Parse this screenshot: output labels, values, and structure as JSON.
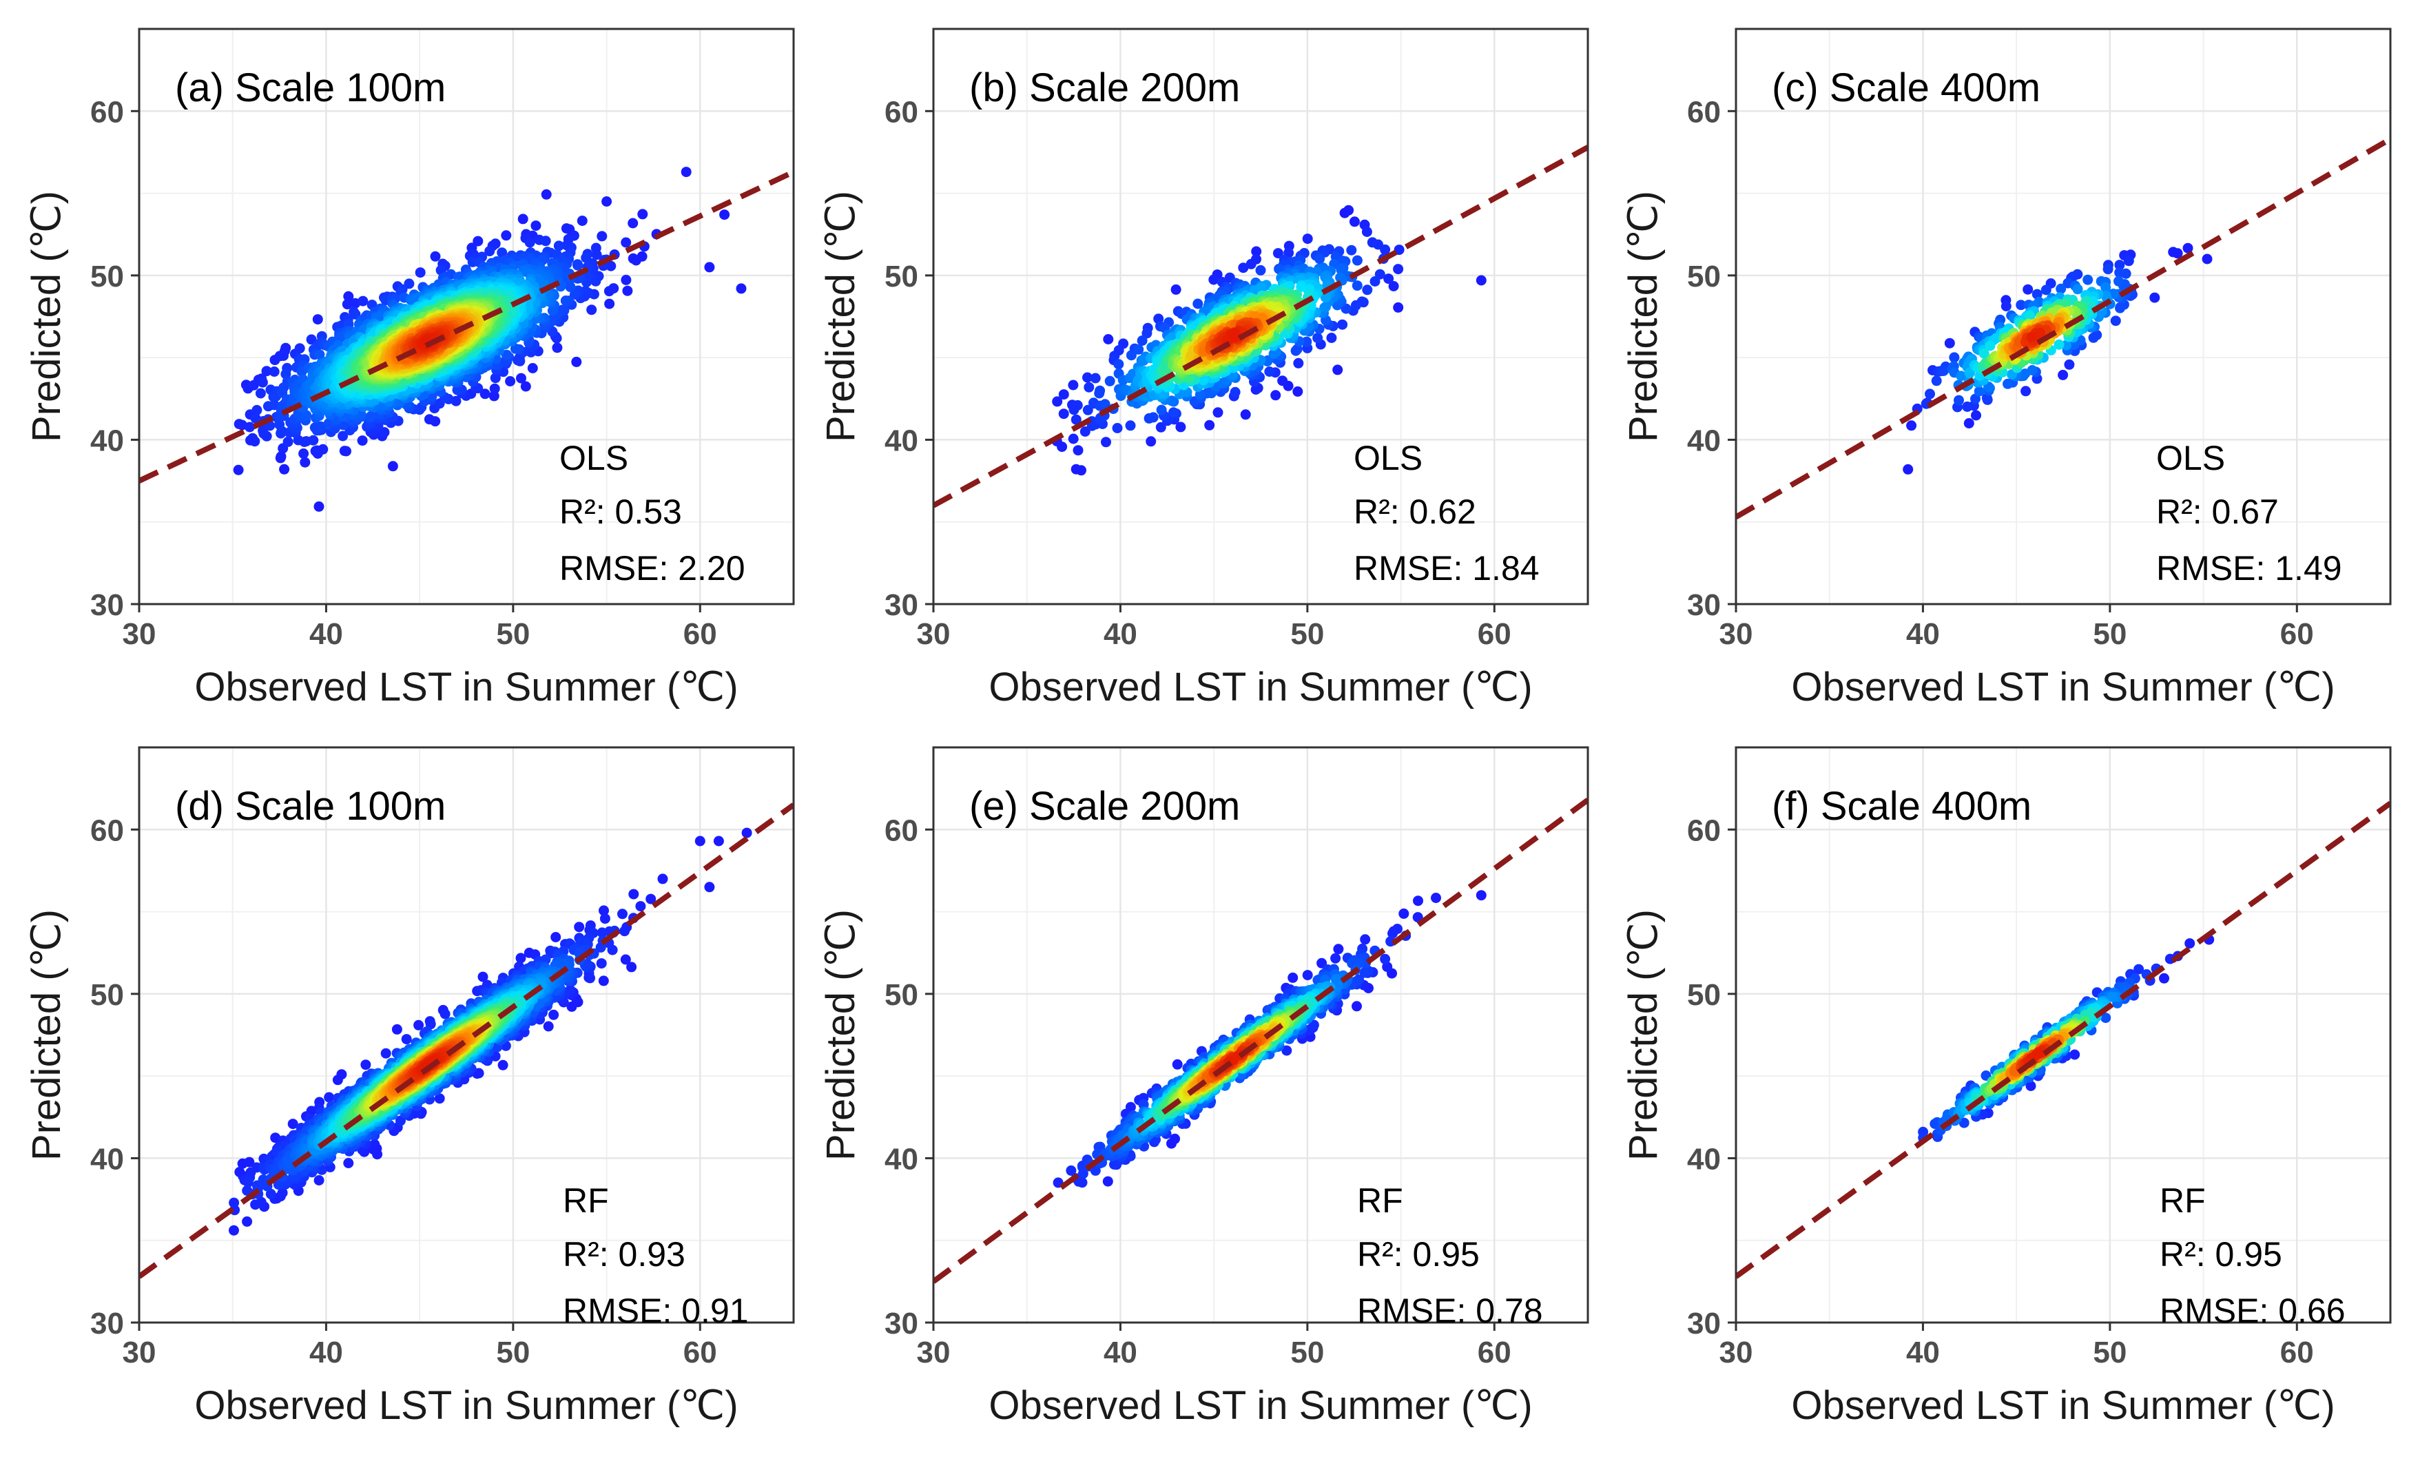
{
  "figure": {
    "description_free": true,
    "x_axis_title": "Observed LST in Summer (℃)",
    "y_axis_title": "Predicted (℃)"
  },
  "colors": {
    "fit_line": "#8b1a1a",
    "grid": "#e6e6e6",
    "frame": "#333333",
    "density_low": "#1a1aff",
    "density_mid": "#00e0ff",
    "density_high": "#e51a00"
  },
  "chart_data": [
    {
      "type": "scatter",
      "panel": "a",
      "title": "(a) Scale 100m",
      "model": "OLS",
      "r2_label": "R²: 0.53",
      "rmse_label": "RMSE: 2.20",
      "xlabel": "Observed LST in Summer (℃)",
      "ylabel": "Predicted (℃)",
      "xlim": [
        30,
        65
      ],
      "ylim": [
        30,
        65
      ],
      "xticks": [
        30,
        40,
        50,
        60
      ],
      "yticks": [
        30,
        40,
        50,
        60
      ],
      "fit_line": {
        "x": [
          30,
          65
        ],
        "y": [
          37.5,
          56.3
        ]
      },
      "cloud": {
        "center": [
          45.5,
          46.0
        ],
        "sx": 3.8,
        "sy": 2.5,
        "rho": 0.72,
        "n": 2600,
        "xmin": 35,
        "xmax": 62
      },
      "outliers": [
        [
          60.5,
          50.5
        ],
        [
          62.2,
          49.2
        ],
        [
          61.3,
          53.7
        ],
        [
          55,
          54.5
        ]
      ]
    },
    {
      "type": "scatter",
      "panel": "b",
      "title": "(b) Scale 200m",
      "model": "OLS",
      "r2_label": "R²: 0.62",
      "rmse_label": "RMSE: 1.84",
      "xlabel": "Observed LST in Summer (℃)",
      "ylabel": "Predicted (℃)",
      "xlim": [
        30,
        65
      ],
      "ylim": [
        30,
        65
      ],
      "xticks": [
        30,
        40,
        50,
        60
      ],
      "yticks": [
        30,
        40,
        50,
        60
      ],
      "fit_line": {
        "x": [
          30,
          65
        ],
        "y": [
          36.0,
          57.8
        ]
      },
      "cloud": {
        "center": [
          46.0,
          46.3
        ],
        "sx": 3.4,
        "sy": 2.4,
        "rho": 0.78,
        "n": 1000,
        "xmin": 36.5,
        "xmax": 56
      },
      "outliers": [
        [
          59.3,
          49.7
        ],
        [
          52,
          53.8
        ]
      ]
    },
    {
      "type": "scatter",
      "panel": "c",
      "title": "(c) Scale 400m",
      "model": "OLS",
      "r2_label": "R²: 0.67",
      "rmse_label": "RMSE: 1.49",
      "xlabel": "Observed LST in Summer (℃)",
      "ylabel": "Predicted (℃)",
      "xlim": [
        30,
        65
      ],
      "ylim": [
        30,
        65
      ],
      "xticks": [
        30,
        40,
        50,
        60
      ],
      "yticks": [
        30,
        40,
        50,
        60
      ],
      "fit_line": {
        "x": [
          30,
          65
        ],
        "y": [
          35.3,
          58.3
        ]
      },
      "cloud": {
        "center": [
          46.0,
          46.3
        ],
        "sx": 2.5,
        "sy": 1.9,
        "rho": 0.8,
        "n": 380,
        "xmin": 39,
        "xmax": 55
      },
      "outliers": [
        [
          55.2,
          51
        ],
        [
          39.2,
          38.2
        ]
      ]
    },
    {
      "type": "scatter",
      "panel": "d",
      "title": "(d) Scale 100m",
      "model": "RF",
      "r2_label": "R²: 0.93",
      "rmse_label": "RMSE: 0.91",
      "xlabel": "Observed LST in Summer (℃)",
      "ylabel": "Predicted (℃)",
      "xlim": [
        30,
        65
      ],
      "ylim": [
        30,
        65
      ],
      "xticks": [
        30,
        40,
        50,
        60
      ],
      "yticks": [
        30,
        40,
        50,
        60
      ],
      "fit_line": {
        "x": [
          30,
          65
        ],
        "y": [
          32.8,
          61.5
        ]
      },
      "cloud": {
        "center": [
          45.5,
          45.7
        ],
        "sx": 4.0,
        "sy": 3.3,
        "rho": 0.96,
        "n": 2600,
        "xmin": 35,
        "xmax": 58
      },
      "outliers": [
        [
          60,
          59.3
        ],
        [
          61,
          59.3
        ],
        [
          62.5,
          59.8
        ],
        [
          60.5,
          56.5
        ],
        [
          58,
          57
        ]
      ]
    },
    {
      "type": "scatter",
      "panel": "e",
      "title": "(e) Scale 200m",
      "model": "RF",
      "r2_label": "R²: 0.95",
      "rmse_label": "RMSE: 0.78",
      "xlabel": "Observed LST in Summer (℃)",
      "ylabel": "Predicted (℃)",
      "xlim": [
        30,
        65
      ],
      "ylim": [
        30,
        65
      ],
      "xticks": [
        30,
        40,
        50,
        60
      ],
      "yticks": [
        30,
        40,
        50,
        60
      ],
      "fit_line": {
        "x": [
          30,
          65
        ],
        "y": [
          32.5,
          61.8
        ]
      },
      "cloud": {
        "center": [
          46.0,
          46.0
        ],
        "sx": 3.5,
        "sy": 3.0,
        "rho": 0.97,
        "n": 1000,
        "xmin": 36.5,
        "xmax": 57
      },
      "outliers": [
        [
          59.3,
          56.0
        ]
      ]
    },
    {
      "type": "scatter",
      "panel": "f",
      "title": "(f) Scale 400m",
      "model": "RF",
      "r2_label": "R²: 0.95",
      "rmse_label": "RMSE: 0.66",
      "xlabel": "Observed LST in Summer (℃)",
      "ylabel": "Predicted (℃)",
      "xlim": [
        30,
        65
      ],
      "ylim": [
        30,
        65
      ],
      "xticks": [
        30,
        40,
        50,
        60
      ],
      "yticks": [
        30,
        40,
        50,
        60
      ],
      "fit_line": {
        "x": [
          30,
          65
        ],
        "y": [
          32.8,
          61.6
        ]
      },
      "cloud": {
        "center": [
          46.0,
          46.2
        ],
        "sx": 2.7,
        "sy": 2.3,
        "rho": 0.97,
        "n": 380,
        "xmin": 39.5,
        "xmax": 55.5
      },
      "outliers": [
        [
          55.3,
          53.3
        ]
      ]
    }
  ]
}
